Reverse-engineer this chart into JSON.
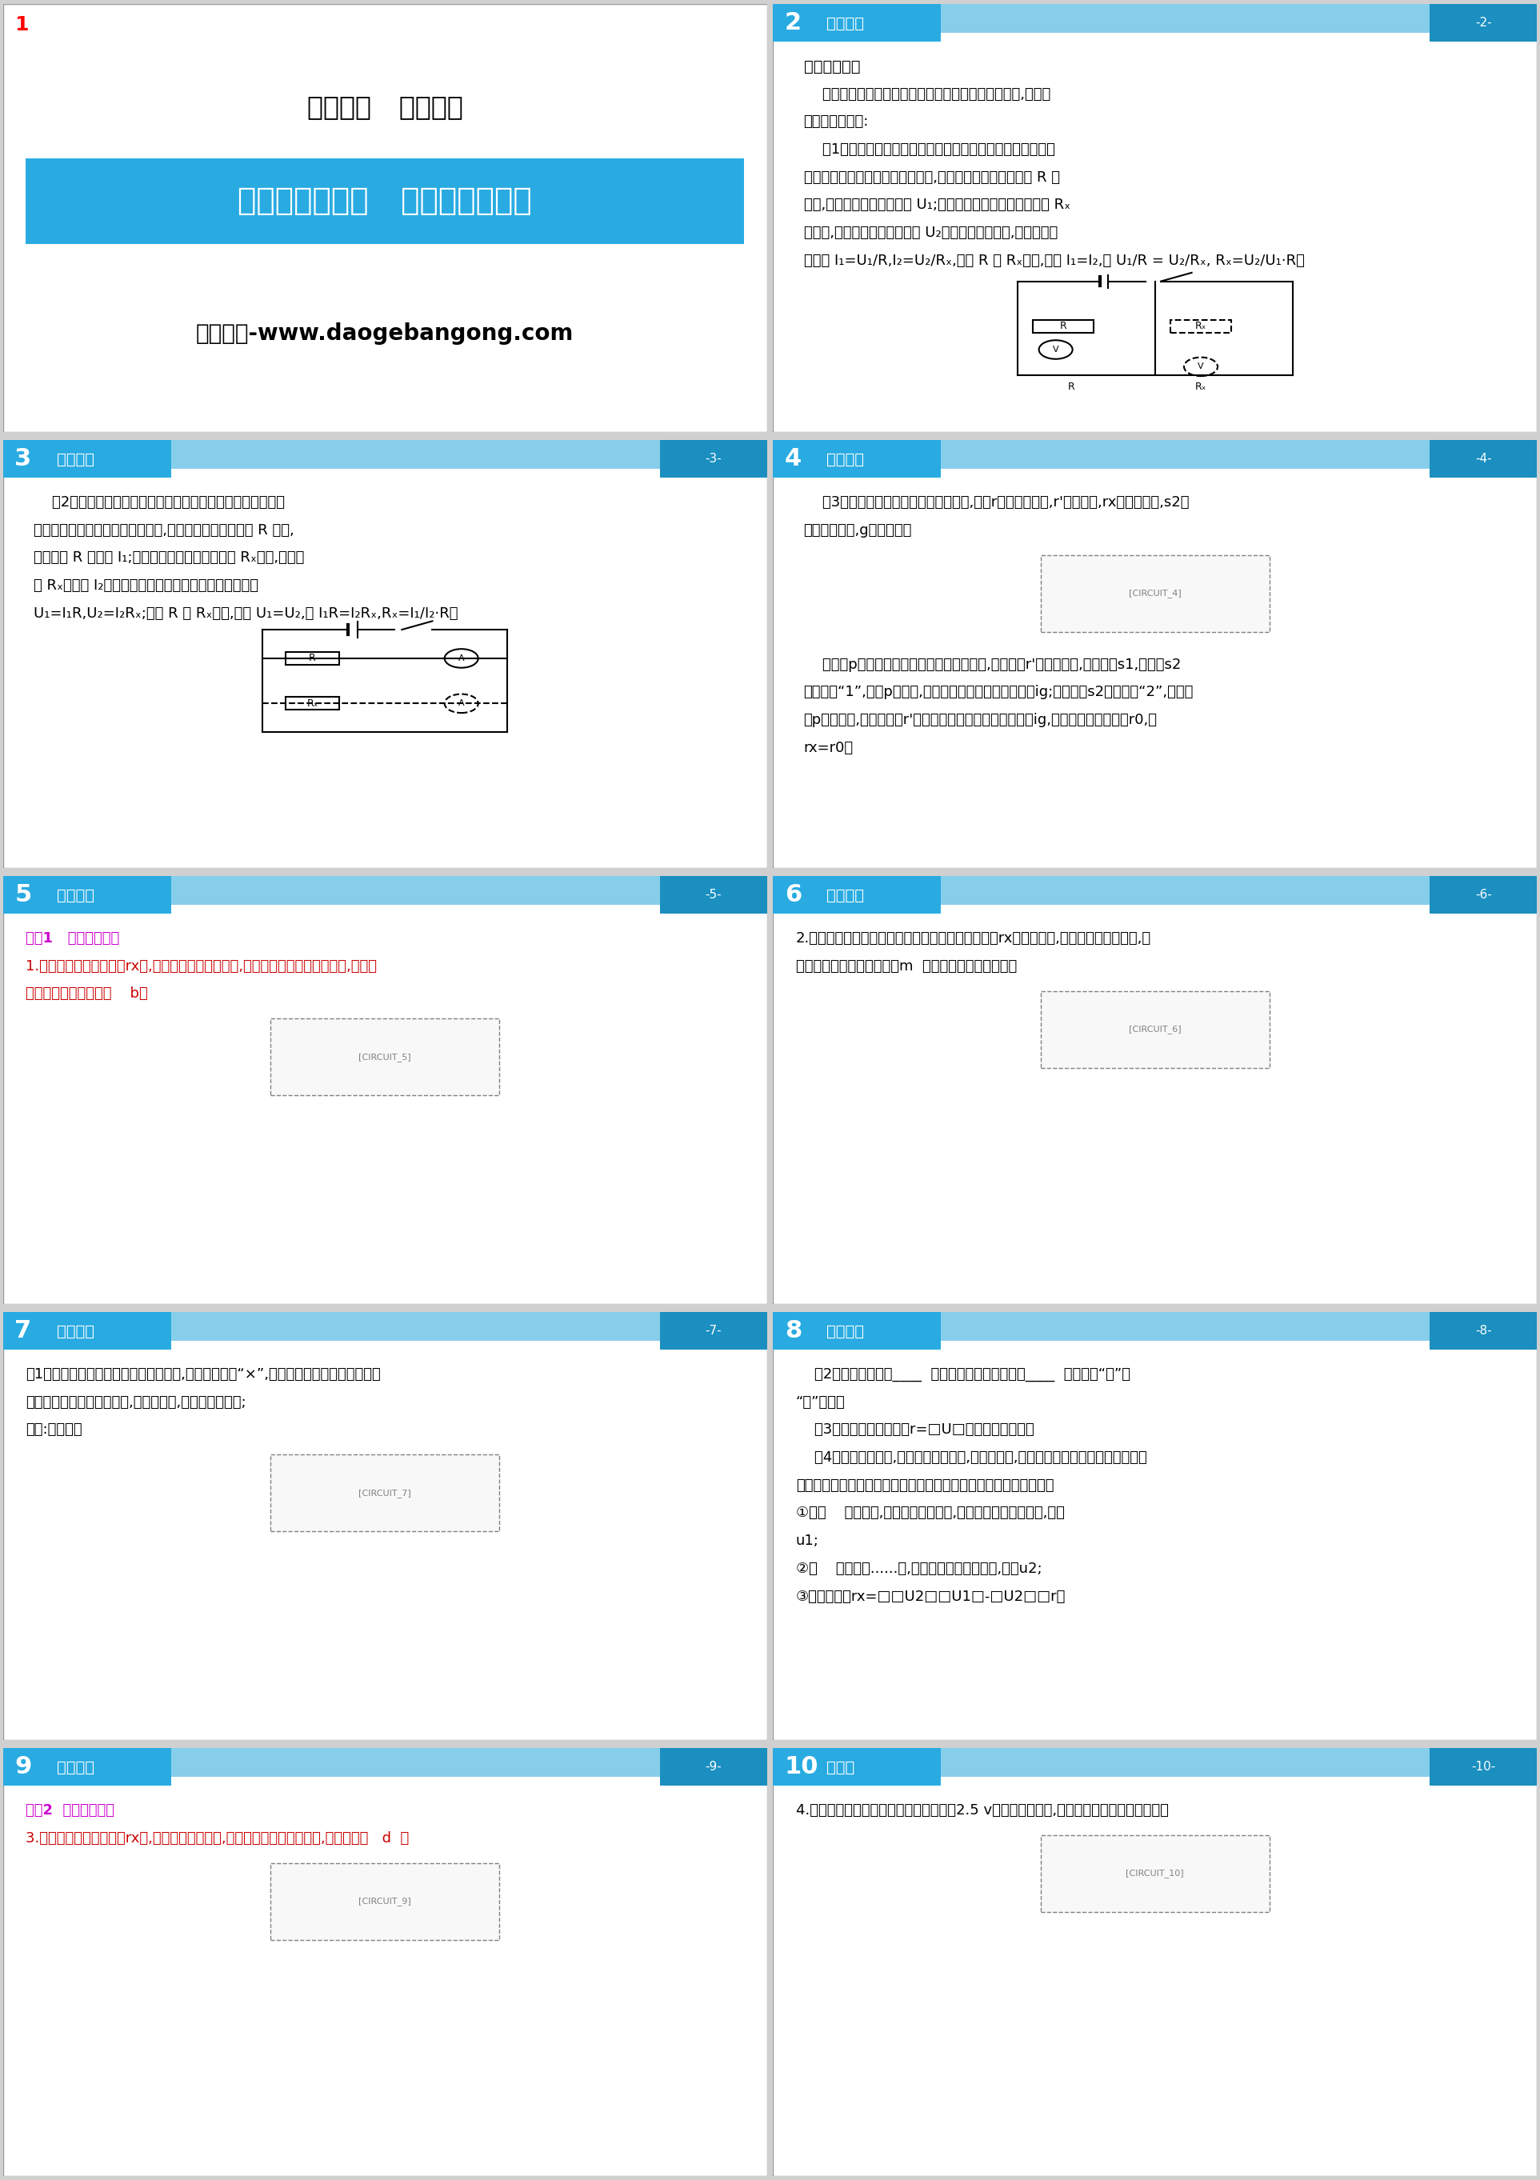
{
  "header_color": "#29ABE2",
  "header_dark_color": "#1A8FC0",
  "light_blue": "#87CEEB",
  "background_color": "#FFFFFF",
  "outer_bg": "#D0D0D0",
  "slides": [
    {
      "num": "1",
      "num_color": "#FF0000",
      "content_type": "title_slide",
      "chapter": "第十七章   欧姆定律",
      "topic": "专题训练（四）   特殊方法测电阵",
      "watermark": "道格办公-www.daogebangong.com"
    },
    {
      "num": "2",
      "num_color": "#FFFFFF",
      "header_label": "专题训练",
      "page_num": "-2-",
      "content_type": "text_slide",
      "title": "「专题概述」",
      "lines": [
        {
          "text": "《专题概述》",
          "bold": true,
          "size": 14,
          "color": "#000000",
          "indent": 0.04
        },
        {
          "text": "    常见的测电阵的特殊方法有伏阵法、安阵法、替代法,其具体",
          "bold": false,
          "size": 13,
          "color": "#000000",
          "indent": 0.04
        },
        {
          "text": "的测量方法如下:",
          "bold": false,
          "size": 13,
          "color": "#000000",
          "indent": 0.04
        },
        {
          "text": "    （1）伏阵法测电阵是指用电压表和已知电阵测未知电阵的方",
          "bold": false,
          "size": 13,
          "color": "#000000",
          "indent": 0.04
        },
        {
          "text": "法。如图是伏阵法测电阵的电路图,先把电压表接在已知电阵 R 的",
          "bold": false,
          "size": 13,
          "color": "#000000",
          "indent": 0.04
        },
        {
          "text": "两端,记下此时电压表的示数 U₁;然后再把电压表接在未知电阵 Rₓ",
          "bold": false,
          "size": 13,
          "color": "#000000",
          "indent": 0.04
        },
        {
          "text": "的两端,记下此时电压表的示数 U₂。根据欧姆定律知,通过两电阵",
          "bold": false,
          "size": 13,
          "color": "#000000",
          "indent": 0.04
        },
        {
          "text": "的电流 I₁=U₁/R,I₂=U₂/Rₓ,由于 R 和 Rₓ串联,所以 I₁=I₂,即 U₁/R = U₂/Rₓ, Rₓ=U₂/U₁·R。",
          "bold": false,
          "size": 13,
          "color": "#000000",
          "indent": 0.04
        },
        {
          "text": "[CIRCUIT_2]",
          "bold": false,
          "size": 13,
          "color": "#000000",
          "indent": 0.04
        }
      ]
    },
    {
      "num": "3",
      "num_color": "#FFFFFF",
      "header_label": "专题训练",
      "page_num": "-3-",
      "content_type": "text_slide",
      "lines": [
        {
          "text": "    （2）安阵法测电阵是指用电流表和已知电阵测未知电阵的方",
          "bold": false,
          "size": 13,
          "color": "#000000",
          "indent": 0.04
        },
        {
          "text": "法。如图是安阵法测电阵的电路图,先把电流表跟已知电阵 R 串联,",
          "bold": false,
          "size": 13,
          "color": "#000000",
          "indent": 0.04
        },
        {
          "text": "测出通过 R 的电流 I₁;然后再把电流表跟未知电阵 Rₓ串联,测出通",
          "bold": false,
          "size": 13,
          "color": "#000000",
          "indent": 0.04
        },
        {
          "text": "过 Rₓ的电流 I₂。根据欧姆定律算出它们各自两端的电压",
          "bold": false,
          "size": 13,
          "color": "#000000",
          "indent": 0.04
        },
        {
          "text": "U₁=I₁R,U₂=I₂Rₓ;由于 R 和 Rₓ并联,所以 U₁=U₂,即 I₁R=I₂Rₓ,Rₓ=I₁/I₂·R。",
          "bold": false,
          "size": 13,
          "color": "#000000",
          "indent": 0.04
        },
        {
          "text": "[CIRCUIT_3]",
          "bold": false,
          "size": 13,
          "color": "#000000",
          "indent": 0.04
        }
      ]
    },
    {
      "num": "4",
      "num_color": "#FFFFFF",
      "header_label": "专题训练",
      "page_num": "-4-",
      "content_type": "text_slide",
      "lines": [
        {
          "text": "    （3）用替代法测电阵的电路如图所示,图中r是滑动变阵器,r'是电阵笱,rx是待测电阵,s2是",
          "bold": false,
          "size": 13,
          "color": "#000000",
          "indent": 0.04
        },
        {
          "text": "单刀双挠开关,g是电流表。",
          "bold": false,
          "size": 13,
          "color": "#000000",
          "indent": 0.04
        },
        {
          "text": "[CIRCUIT_4]",
          "bold": false,
          "size": 13,
          "color": "#000000",
          "indent": 0.04
        },
        {
          "text": "    将滑片p调至电路图中滑动变阵器的最下端,将电阵笱r'调至最大値,闭合开关s1,将开关s2",
          "bold": false,
          "size": 13,
          "color": "#000000",
          "indent": 0.04
        },
        {
          "text": "拨向位置“1”,调节p的位置,使电流表指示某一合适的刻度ig;再将开关s2拨向位置“2”,保持滑",
          "bold": false,
          "size": 13,
          "color": "#000000",
          "indent": 0.04
        },
        {
          "text": "片p位置不变,调节电阵笱r'的阵値使电流表指示的刻度仍为ig,此时电阵笱的阵値为r0,则",
          "bold": false,
          "size": 13,
          "color": "#000000",
          "indent": 0.04
        },
        {
          "text": "rx=r0。",
          "bold": false,
          "size": 13,
          "color": "#000000",
          "indent": 0.04
        }
      ]
    },
    {
      "num": "5",
      "num_color": "#FFFFFF",
      "header_label": "专题训练",
      "page_num": "-5-",
      "content_type": "text_slide",
      "lines": [
        {
          "text": "类型1   伏阵法测电阵",
          "bold": true,
          "size": 13,
          "color": "#CC00CC",
          "indent": 0.03
        },
        {
          "text": "1.在用伏安法测未知电阵rx时,如果电流表缺少或损坏,也可以通过其他方式来解决,下列四",
          "bold": false,
          "size": 13,
          "color": "#CC0000",
          "indent": 0.03
        },
        {
          "text": "个图中能夠完成任务的    b）",
          "bold": false,
          "size": 13,
          "color": "#CC0000",
          "indent": 0.03
        },
        {
          "text": "[CIRCUIT_5]",
          "bold": false,
          "size": 13,
          "color": "#000000",
          "indent": 0.04
        }
      ]
    },
    {
      "num": "6",
      "num_color": "#FFFFFF",
      "header_label": "专题训练",
      "page_num": "-6-",
      "content_type": "text_slide",
      "lines": [
        {
          "text": "2.（绥化中考）图甲是实验小组用伏安法测未知电阵rx的实物电路,电源电压未知但恒定,已",
          "bold": false,
          "size": 13,
          "color": "#000000",
          "indent": 0.03
        },
        {
          "text": "知滑动变阵器的最大阵値为m  电阵均不受温度影响）。",
          "bold": false,
          "size": 13,
          "color": "#000000",
          "indent": 0.03
        },
        {
          "text": "[CIRCUIT_6]",
          "bold": false,
          "size": 13,
          "color": "#000000",
          "indent": 0.04
        }
      ]
    },
    {
      "num": "7",
      "num_color": "#FFFFFF",
      "header_label": "专题训练",
      "page_num": "-7-",
      "content_type": "text_slide",
      "lines": [
        {
          "text": "（1）在图甲中找出连接错误的一根导线,并在导线上画“×”,用笔画线代替导线将实物图连",
          "bold": false,
          "size": 13,
          "color": "#000000",
          "indent": 0.03
        },
        {
          "text": "正确（所画的导线变为实线,不可用虚线,导线不能交叉）;",
          "bold": false,
          "size": 13,
          "color": "#000000",
          "indent": 0.03
        },
        {
          "text": "答案:如图所示",
          "bold": false,
          "size": 13,
          "color": "#000000",
          "indent": 0.03
        },
        {
          "text": "[CIRCUIT_7]",
          "bold": false,
          "size": 13,
          "color": "#000000",
          "indent": 0.04
        }
      ]
    },
    {
      "num": "8",
      "num_color": "#FFFFFF",
      "header_label": "专题训练",
      "page_num": "-8-",
      "content_type": "text_slide",
      "lines": [
        {
          "text": "    （2）连接电路时：____  析开，滑动变阵器的滑片____  右（选填“左”或",
          "bold": false,
          "size": 13,
          "color": "#000000",
          "indent": 0.03
        },
        {
          "text": "“右”）端；",
          "bold": false,
          "size": 13,
          "color": "#000000",
          "indent": 0.03
        },
        {
          "text": "    （3）该实验的原理是：r=□U□（或欧姆定律）；",
          "bold": false,
          "size": 13,
          "color": "#000000",
          "indent": 0.03
        },
        {
          "text": "    （4）在实验操作中,发现电流表已损坏,电压表完好,于是小组的同学设计了如图乙所示",
          "bold": false,
          "size": 13,
          "color": "#000000",
          "indent": 0.03
        },
        {
          "text": "的电路图他完成了该实验。请你帮助他们按以下实验步骤填写完整：",
          "bold": false,
          "size": 13,
          "color": "#000000",
          "indent": 0.03
        },
        {
          "text": "①闭（    器的滑片,当滑片至最右端时,读出此时电压表的示数,记为",
          "bold": false,
          "size": 13,
          "color": "#000000",
          "indent": 0.03
        },
        {
          "text": "u1;",
          "bold": false,
          "size": 13,
          "color": "#000000",
          "indent": 0.03
        },
        {
          "text": "②再    将滑片移......端,读出此时电压表的示数,记为u2;",
          "bold": false,
          "size": 13,
          "color": "#000000",
          "indent": 0.03
        },
        {
          "text": "③则未知电阵rx=□□U2□□U1□-□U2□□r。",
          "bold": false,
          "size": 13,
          "color": "#000000",
          "indent": 0.03
        }
      ]
    },
    {
      "num": "9",
      "num_color": "#FFFFFF",
      "header_label": "专题训练",
      "page_num": "-9-",
      "content_type": "text_slide",
      "lines": [
        {
          "text": "类型2  安阵法测电阵",
          "bold": true,
          "size": 13,
          "color": "#CC00CC",
          "indent": 0.03
        },
        {
          "text": "3.在用伏安法测未知电阵rx时,发现电压表已损坏,某同学设计下列四个方案,正确的是（   d  ）",
          "bold": false,
          "size": 13,
          "color": "#CC0000",
          "indent": 0.03
        },
        {
          "text": "[CIRCUIT_9]",
          "bold": false,
          "size": 13,
          "color": "#000000",
          "indent": 0.04
        }
      ]
    },
    {
      "num": "10",
      "num_color": "#FFFFFF",
      "header_label": "题训练",
      "page_num": "-10-",
      "content_type": "text_slide",
      "lines": [
        {
          "text": "4.小明图图甲所示的电路测量额定电压为2.5 v的小灯泡的电阵,图乙是小明连接的实验电路。",
          "bold": false,
          "size": 13,
          "color": "#000000",
          "indent": 0.03
        },
        {
          "text": "[CIRCUIT_10]",
          "bold": false,
          "size": 13,
          "color": "#000000",
          "indent": 0.04
        }
      ]
    }
  ]
}
